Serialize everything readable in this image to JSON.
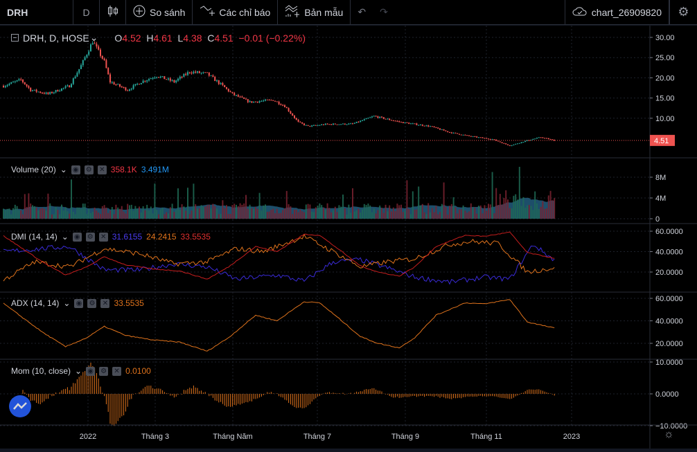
{
  "toolbar": {
    "symbol": "DRH",
    "interval": "D",
    "compare": "So sánh",
    "indicators": "Các chỉ báo",
    "templates": "Bản mẫu",
    "chart_name": "chart_26909820"
  },
  "main": {
    "title": "DRH, D, HOSE",
    "o_label": "O",
    "o": "4.52",
    "h_label": "H",
    "h": "4.61",
    "l_label": "L",
    "l": "4.38",
    "c_label": "C",
    "c": "4.51",
    "change": "−0.01 (−0.22%)",
    "last_price": "4.51",
    "axis": [
      "30.00",
      "25.00",
      "20.00",
      "15.00",
      "10.00",
      "5.00"
    ]
  },
  "volume": {
    "title": "Volume (20)",
    "v1": "358.1K",
    "v2": "3.491M",
    "axis": [
      "8M",
      "4M",
      "0"
    ]
  },
  "dmi": {
    "title": "DMI (14, 14)",
    "plus": "31.6155",
    "minus": "24.2415",
    "adx": "33.5535",
    "axis": [
      "60.0000",
      "40.0000",
      "20.0000"
    ]
  },
  "adx": {
    "title": "ADX (14, 14)",
    "value": "33.5535",
    "axis": [
      "60.0000",
      "40.0000",
      "20.0000"
    ]
  },
  "mom": {
    "title": "Mom (10, close)",
    "value": "0.0100",
    "axis": [
      "10.0000",
      "0.0000",
      "−10.0000"
    ]
  },
  "time_axis": [
    "2022",
    "Tháng 3",
    "Tháng Năm",
    "Tháng 7",
    "Tháng 9",
    "Tháng 11",
    "2023"
  ],
  "colors": {
    "up": "#26a69a",
    "down": "#ef5350",
    "plus_di": "#3a2bd8",
    "minus_di": "#e0731c",
    "adx": "#c81e1e",
    "adx_pane": "#e0731c",
    "vol_ma": "#2a6f97"
  },
  "chart_data": {
    "type": "line",
    "note": "approximate daily series by trading-day index",
    "price_keypoints": [
      [
        0,
        18
      ],
      [
        9,
        19.5
      ],
      [
        14,
        17
      ],
      [
        23,
        16
      ],
      [
        34,
        18
      ],
      [
        40,
        23
      ],
      [
        46,
        29
      ],
      [
        52,
        24
      ],
      [
        55,
        19
      ],
      [
        64,
        17
      ],
      [
        71,
        19
      ],
      [
        79,
        20.5
      ],
      [
        88,
        19
      ],
      [
        96,
        21.5
      ],
      [
        105,
        21
      ],
      [
        113,
        18
      ],
      [
        118,
        16
      ],
      [
        127,
        14
      ],
      [
        139,
        14.5
      ],
      [
        145,
        13
      ],
      [
        152,
        9
      ],
      [
        157,
        8
      ],
      [
        166,
        8.5
      ],
      [
        180,
        8.6
      ],
      [
        191,
        10.5
      ],
      [
        205,
        9
      ],
      [
        220,
        8
      ],
      [
        230,
        6.5
      ],
      [
        241,
        5.5
      ],
      [
        252,
        4.8
      ],
      [
        261,
        3.2
      ],
      [
        270,
        4.5
      ],
      [
        277,
        5.3
      ],
      [
        284,
        4.51
      ]
    ],
    "adx_keypoints": [
      [
        9,
        44
      ],
      [
        20,
        30
      ],
      [
        32,
        17
      ],
      [
        43,
        25
      ],
      [
        52,
        35
      ],
      [
        63,
        27
      ],
      [
        77,
        23
      ],
      [
        91,
        21
      ],
      [
        105,
        13
      ],
      [
        116,
        25
      ],
      [
        130,
        45
      ],
      [
        141,
        40
      ],
      [
        155,
        57
      ],
      [
        163,
        56
      ],
      [
        173,
        42
      ],
      [
        184,
        26
      ],
      [
        193,
        20
      ],
      [
        204,
        16
      ],
      [
        212,
        25
      ],
      [
        223,
        45
      ],
      [
        238,
        56
      ],
      [
        248,
        55
      ],
      [
        261,
        59
      ],
      [
        270,
        39
      ],
      [
        275,
        37
      ],
      [
        284,
        33.55
      ]
    ],
    "plus_di_keypoints": [
      [
        0,
        40
      ],
      [
        34,
        45
      ],
      [
        52,
        22
      ],
      [
        70,
        22
      ],
      [
        88,
        28
      ],
      [
        105,
        25
      ],
      [
        120,
        13
      ],
      [
        141,
        17
      ],
      [
        155,
        11
      ],
      [
        170,
        30
      ],
      [
        184,
        32
      ],
      [
        198,
        24
      ],
      [
        212,
        15
      ],
      [
        230,
        10
      ],
      [
        248,
        15
      ],
      [
        261,
        13
      ],
      [
        273,
        47
      ],
      [
        284,
        31.6
      ]
    ],
    "minus_di_keypoints": [
      [
        0,
        12
      ],
      [
        16,
        30
      ],
      [
        34,
        25
      ],
      [
        52,
        43
      ],
      [
        70,
        38
      ],
      [
        88,
        28
      ],
      [
        105,
        30
      ],
      [
        120,
        43
      ],
      [
        134,
        40
      ],
      [
        155,
        55
      ],
      [
        170,
        40
      ],
      [
        184,
        25
      ],
      [
        198,
        30
      ],
      [
        212,
        33
      ],
      [
        230,
        47
      ],
      [
        241,
        50
      ],
      [
        255,
        48
      ],
      [
        270,
        20
      ],
      [
        284,
        24.2
      ]
    ]
  }
}
